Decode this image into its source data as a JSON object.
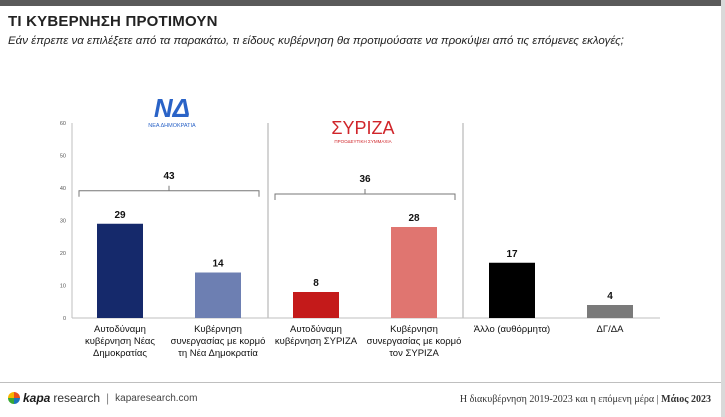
{
  "header": {
    "title": "ΤΙ ΚΥΒΕΡΝΗΣΗ ΠΡΟΤΙΜΟΥΝ",
    "subtitle": "Εάν έπρεπε να επιλέξετε από τα παρακάτω, τι είδους κυβέρνηση θα προτιμούσατε να προκύψει από τις επόμενες εκλογές;"
  },
  "logos": {
    "nd": {
      "mark": "ΝΔ",
      "text": "ΝΕΑ ΔΗΜΟΚΡΑΤΙΑ"
    },
    "syriza": {
      "mark": "ΣΥΡΙΖΑ",
      "text": "ΠΡΟΟΔΕΥΤΙΚΗ ΣΥΜΜΑΧΙΑ"
    }
  },
  "chart_data": {
    "type": "bar",
    "categories": [
      [
        "Αυτοδύναμη",
        "κυβέρνηση Νέας",
        "Δημοκρατίας"
      ],
      [
        "Κυβέρνηση",
        "συνεργασίας με κορμό",
        "τη Νέα Δημοκρατία"
      ],
      [
        "Αυτοδύναμη",
        "κυβέρνηση ΣΥΡΙΖΑ"
      ],
      [
        "Κυβέρνηση",
        "συνεργασίας με κορμό",
        "τον ΣΥΡΙΖΑ"
      ],
      [
        "Άλλο (αυθόρμητα)"
      ],
      [
        "ΔΓ/ΔΑ"
      ]
    ],
    "values": [
      29,
      14,
      8,
      28,
      17,
      4
    ],
    "colors": [
      "#15296b",
      "#6d7fb2",
      "#c41a1a",
      "#e07570",
      "#000000",
      "#7a7a7a"
    ],
    "ylim": [
      0,
      60
    ],
    "yticks": [
      "0",
      "10",
      "20",
      "30",
      "40",
      "50",
      "60"
    ],
    "grid": false,
    "group_totals": [
      {
        "label": "43",
        "from": 0,
        "to": 1
      },
      {
        "label": "36",
        "from": 2,
        "to": 3
      }
    ]
  },
  "footer": {
    "brand_k": "kapa",
    "brand_rest": "research",
    "url": "kaparesearch.com",
    "note": "Η διακυβέρνηση 2019-2023 και η επόμενη μέρα |",
    "date": "Μάιος 2023"
  }
}
